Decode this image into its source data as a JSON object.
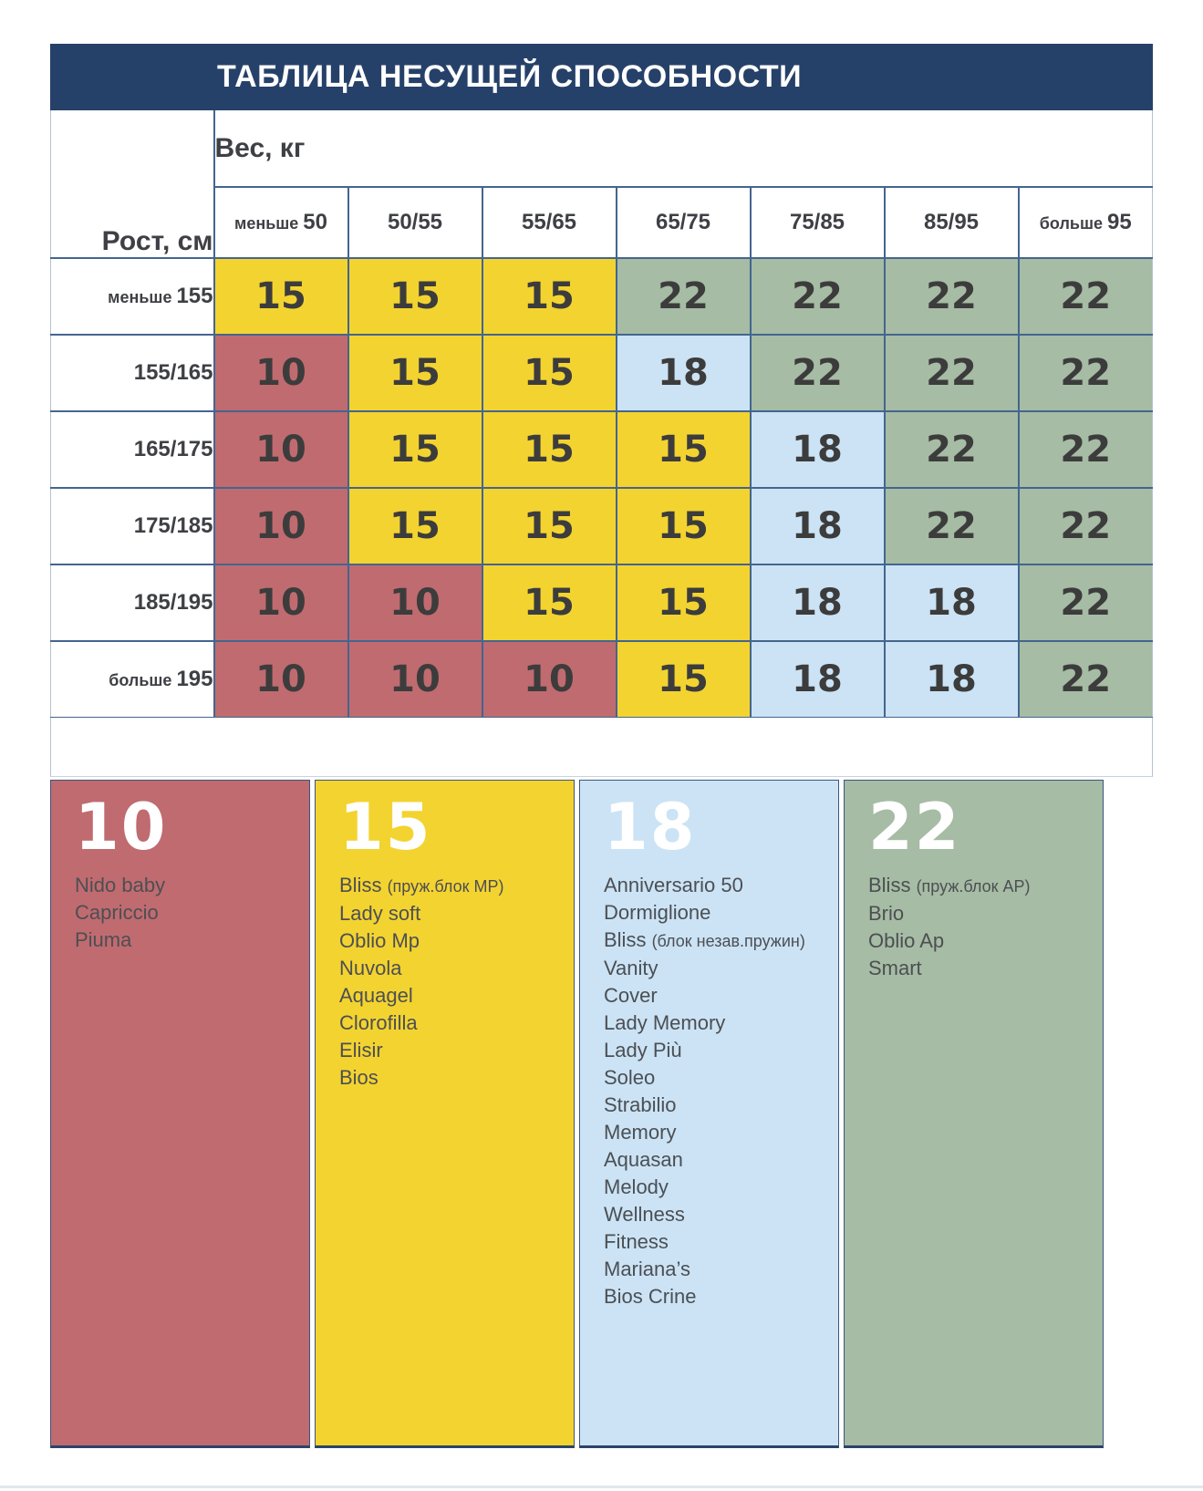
{
  "title": "ТАБЛИЦА НЕСУЩЕЙ СПОСОБНОСТИ",
  "colors": {
    "navy": "#264169",
    "cell_text": "#3c3c3c"
  },
  "chart_data": {
    "type": "heatmap",
    "title": "ТАБЛИЦА НЕСУЩЕЙ СПОСОБНОСТИ",
    "x_label": "Вес, кг",
    "y_label": "Рост, см",
    "x_categories": [
      "меньше 50",
      "50/55",
      "55/65",
      "65/75",
      "75/85",
      "85/95",
      "больше 95"
    ],
    "y_categories": [
      "меньше 155",
      "155/165",
      "165/175",
      "175/185",
      "185/195",
      "больше 195"
    ],
    "values": [
      [
        15,
        15,
        15,
        22,
        22,
        22,
        22
      ],
      [
        10,
        15,
        15,
        18,
        22,
        22,
        22
      ],
      [
        10,
        15,
        15,
        15,
        18,
        22,
        22
      ],
      [
        10,
        15,
        15,
        15,
        18,
        22,
        22
      ],
      [
        10,
        10,
        15,
        15,
        18,
        18,
        22
      ],
      [
        10,
        10,
        10,
        15,
        18,
        18,
        22
      ]
    ],
    "value_colors": {
      "10": "#c06b70",
      "15": "#f3d330",
      "18": "#cbe3f5",
      "22": "#a6bca4"
    },
    "legend_position": "bottom",
    "grid": true
  },
  "legend": [
    {
      "value": "10",
      "items": [
        "Nido baby",
        "Capriccio",
        "Piuma"
      ]
    },
    {
      "value": "15",
      "items": [
        "Bliss (пруж.блок MP)",
        "Lady soft",
        "Oblio Mp",
        "Nuvola",
        "Aquagel",
        "Clorofilla",
        "Elisir",
        "Bios"
      ]
    },
    {
      "value": "18",
      "items": [
        "Anniversario 50",
        "Dormiglione",
        "Bliss (блок незав.пружин)",
        "Vanity",
        "Cover",
        "Lady Memory",
        "Lady Più",
        "Soleo",
        "Strabilio",
        "Memory",
        "Aquasan",
        "Melody",
        "Wellness",
        "Fitness",
        "Mariana’s",
        "Bios Crine"
      ]
    },
    {
      "value": "22",
      "items": [
        "Bliss (пруж.блок AP)",
        "Brio",
        "Oblio Ap",
        "Smart"
      ]
    }
  ]
}
